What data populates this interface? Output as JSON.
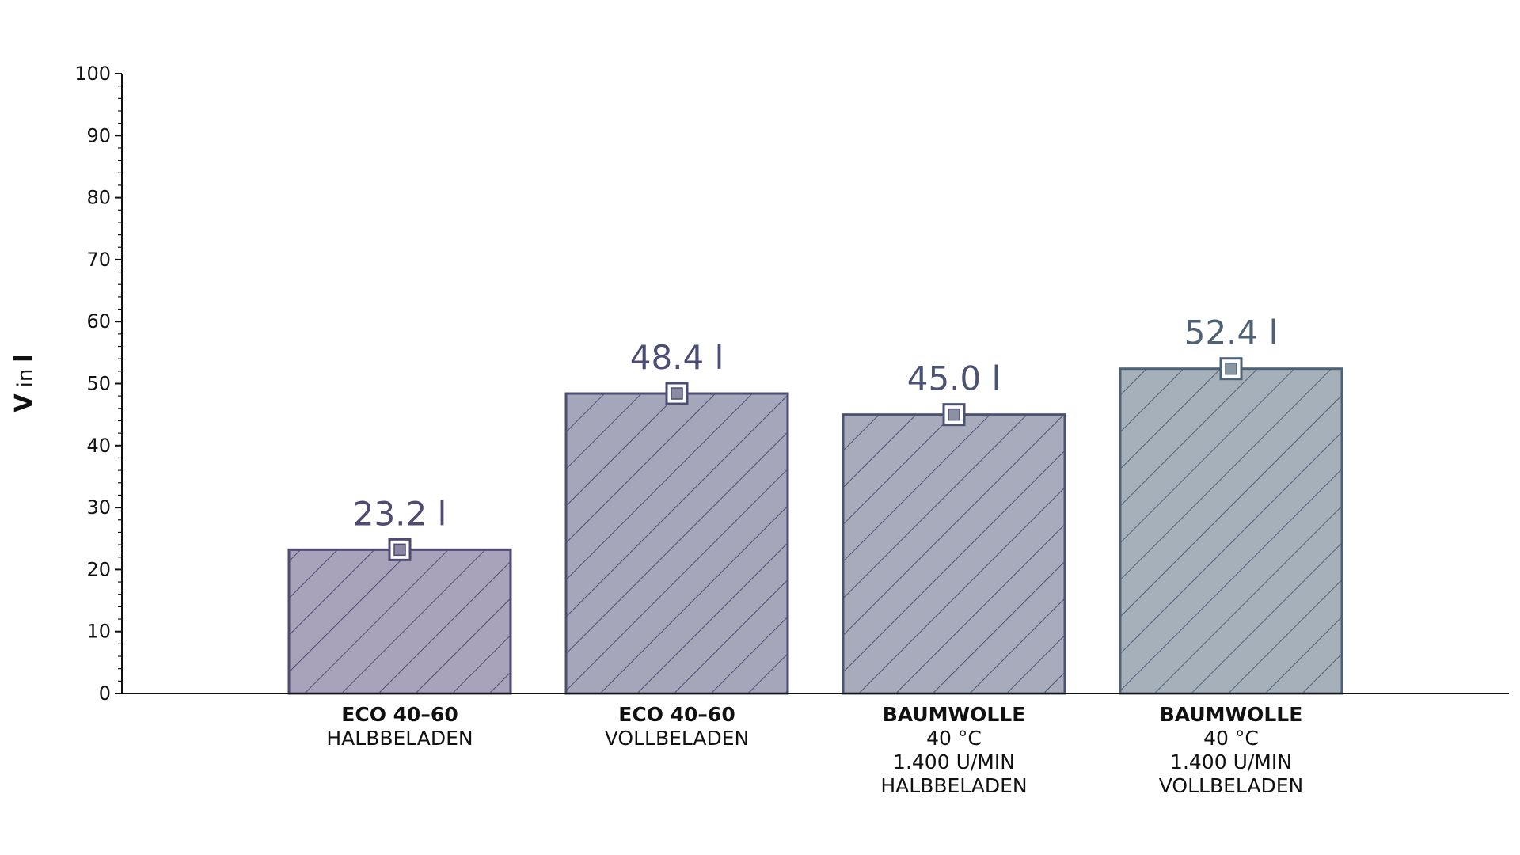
{
  "chart_data": {
    "type": "bar",
    "ylabel": {
      "main": "V",
      "mid": "in",
      "unit": "l"
    },
    "ylim": [
      0,
      100
    ],
    "yticks": [
      0,
      10,
      20,
      30,
      40,
      50,
      60,
      70,
      80,
      90,
      100
    ],
    "grid": false,
    "categories": [
      {
        "bold": "ECO 40–60",
        "lines": [
          "HALBBELADEN"
        ]
      },
      {
        "bold": "ECO 40–60",
        "lines": [
          "VOLLBELADEN"
        ]
      },
      {
        "bold": "BAUMWOLLE",
        "lines": [
          "40 °C",
          "1.400 U/MIN",
          "HALBBELADEN"
        ]
      },
      {
        "bold": "BAUMWOLLE",
        "lines": [
          "40 °C",
          "1.400 U/MIN",
          "VOLLBELADEN"
        ]
      }
    ],
    "values": [
      23.2,
      48.4,
      45.0,
      52.4
    ],
    "value_labels": [
      "23.2 l",
      "48.4 l",
      "45.0 l",
      "52.4 l"
    ],
    "colors": {
      "fills": [
        "#a8a3bb",
        "#a6a6bb",
        "#a8abbb",
        "#a6b0bb"
      ],
      "edges": [
        "#4f4a72",
        "#4c4d73",
        "#4a5372",
        "#4f6175"
      ],
      "labels": [
        "#4f4a72",
        "#4c4d73",
        "#4a5372",
        "#4f6175"
      ],
      "marker_inner": [
        "#8a85a3",
        "#8b8aa3",
        "#8b90a3",
        "#8a97a3"
      ]
    }
  }
}
